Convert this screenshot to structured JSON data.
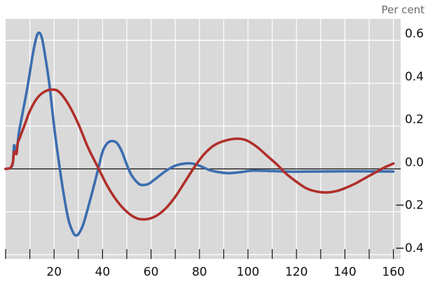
{
  "chart_data": {
    "type": "line",
    "title": "",
    "xlabel": "",
    "ylabel": "",
    "unit_label": "Per cent",
    "xlim": [
      0,
      163
    ],
    "ylim": [
      -0.42,
      0.7
    ],
    "x_ticks": [
      20,
      40,
      60,
      80,
      100,
      120,
      140,
      160
    ],
    "x_tick_labels": [
      "20",
      "40",
      "60",
      "80",
      "100",
      "120",
      "140",
      "160"
    ],
    "y_ticks": [
      0.6,
      0.4,
      0.2,
      0.0,
      -0.2,
      -0.4
    ],
    "y_tick_labels": [
      "0.6",
      "0.4",
      "0.2",
      "0.0",
      "−0.2",
      "−0.4"
    ],
    "grid": true,
    "legend": "none",
    "background_color": "#d9d9d9",
    "series": [
      {
        "color": "#3b6db0",
        "points": [
          [
            0,
            0
          ],
          [
            2,
            0.005
          ],
          [
            3,
            0.03
          ],
          [
            3.5,
            0.11
          ],
          [
            4.5,
            0.08
          ],
          [
            5.5,
            0.17
          ],
          [
            7,
            0.26
          ],
          [
            9,
            0.38
          ],
          [
            11,
            0.52
          ],
          [
            12,
            0.58
          ],
          [
            13,
            0.625
          ],
          [
            14,
            0.635
          ],
          [
            15,
            0.61
          ],
          [
            16,
            0.55
          ],
          [
            18,
            0.4
          ],
          [
            20,
            0.2
          ],
          [
            22,
            0.03
          ],
          [
            24,
            -0.12
          ],
          [
            26,
            -0.24
          ],
          [
            28,
            -0.3
          ],
          [
            29,
            -0.31
          ],
          [
            30,
            -0.305
          ],
          [
            32,
            -0.26
          ],
          [
            35,
            -0.14
          ],
          [
            38,
            -0.01
          ],
          [
            40,
            0.08
          ],
          [
            42,
            0.12
          ],
          [
            44,
            0.13
          ],
          [
            46,
            0.12
          ],
          [
            48,
            0.08
          ],
          [
            50,
            0.02
          ],
          [
            52,
            -0.03
          ],
          [
            55,
            -0.07
          ],
          [
            57,
            -0.075
          ],
          [
            59,
            -0.07
          ],
          [
            62,
            -0.045
          ],
          [
            66,
            -0.01
          ],
          [
            70,
            0.015
          ],
          [
            74,
            0.025
          ],
          [
            77,
            0.025
          ],
          [
            80,
            0.015
          ],
          [
            84,
            -0.005
          ],
          [
            88,
            -0.015
          ],
          [
            92,
            -0.02
          ],
          [
            97,
            -0.015
          ],
          [
            102,
            -0.008
          ],
          [
            110,
            -0.01
          ],
          [
            120,
            -0.013
          ],
          [
            140,
            -0.011
          ],
          [
            160,
            -0.012
          ]
        ]
      },
      {
        "color": "#b02f2b",
        "points": [
          [
            0,
            0
          ],
          [
            2,
            0.005
          ],
          [
            3,
            0.03
          ],
          [
            3.5,
            0.08
          ],
          [
            4.5,
            0.07
          ],
          [
            5,
            0.12
          ],
          [
            6,
            0.15
          ],
          [
            8,
            0.21
          ],
          [
            10,
            0.27
          ],
          [
            13,
            0.33
          ],
          [
            16,
            0.36
          ],
          [
            19,
            0.37
          ],
          [
            22,
            0.36
          ],
          [
            26,
            0.3
          ],
          [
            30,
            0.21
          ],
          [
            34,
            0.1
          ],
          [
            38,
            0.01
          ],
          [
            42,
            -0.08
          ],
          [
            46,
            -0.15
          ],
          [
            50,
            -0.2
          ],
          [
            54,
            -0.23
          ],
          [
            58,
            -0.235
          ],
          [
            62,
            -0.22
          ],
          [
            66,
            -0.185
          ],
          [
            70,
            -0.13
          ],
          [
            74,
            -0.06
          ],
          [
            78,
            0.01
          ],
          [
            82,
            0.07
          ],
          [
            86,
            0.11
          ],
          [
            90,
            0.13
          ],
          [
            94,
            0.14
          ],
          [
            97,
            0.14
          ],
          [
            100,
            0.13
          ],
          [
            104,
            0.1
          ],
          [
            108,
            0.06
          ],
          [
            112,
            0.02
          ],
          [
            116,
            -0.025
          ],
          [
            120,
            -0.06
          ],
          [
            124,
            -0.09
          ],
          [
            128,
            -0.105
          ],
          [
            132,
            -0.11
          ],
          [
            136,
            -0.105
          ],
          [
            140,
            -0.09
          ],
          [
            144,
            -0.07
          ],
          [
            148,
            -0.045
          ],
          [
            152,
            -0.02
          ],
          [
            156,
            0.005
          ],
          [
            160,
            0.025
          ]
        ]
      }
    ]
  }
}
